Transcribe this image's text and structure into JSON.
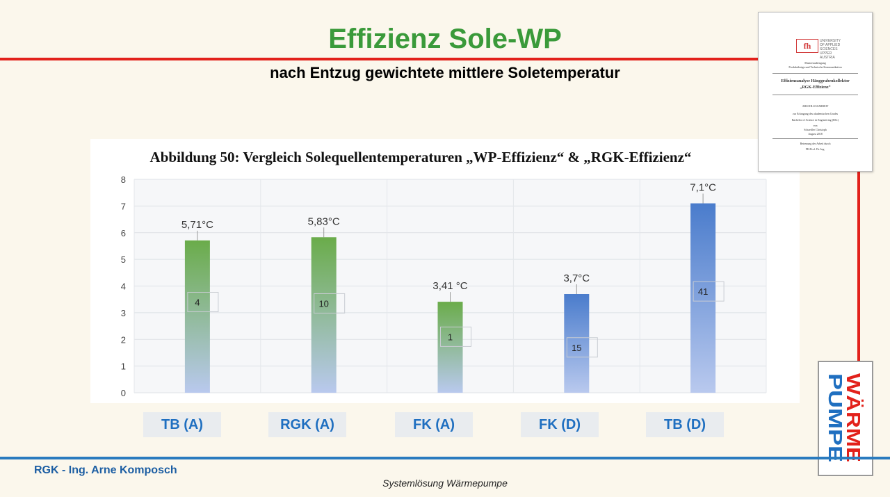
{
  "slide": {
    "title": "Effizienz Sole-WP",
    "subtitle": "nach Entzug gewichtete mittlere Soletemperatur",
    "footer_author": "RGK - Ing. Arne Komposch",
    "footer_center": "Systemlösung Wärmepumpe"
  },
  "logo": {
    "word1": "WÄRME",
    "word2": "PUMPE",
    "word1_color": "#e2211b",
    "word2_color": "#1f6fc0"
  },
  "doc_thumbnail": {
    "logo_mark": "fh",
    "logo_text_1": "UNIVERSITY",
    "logo_text_2": "OF APPLIED SCIENCES",
    "logo_text_3": "UPPER AUSTRIA",
    "line1": "Masterstudiengang",
    "line2": "Produktdesign und Technische Kommunikation",
    "heading1": "Effizienzanalyse Hänggrabenkollektor",
    "heading2": "„RGK-Effizienz“",
    "line3": "ABSCHLUSSARBEIT",
    "line4": "zur Erlangung des akademischen Grades",
    "line5": "Bachelor of Science in Engineering (BSc)",
    "line6": "von",
    "line7": "Schaedler Christoph",
    "line8": "August 2018",
    "line9": "Betreuung der Arbeit durch",
    "line10": "FH-Prof. Dr. Ing."
  },
  "chart_data": {
    "type": "bar",
    "title": "Abbildung 50: Vergleich Solequellentemperaturen „WP-Effizienz“ & „RGK-Effizienz“",
    "categories": [
      "TB (A)",
      "RGK (A)",
      "FK (A)",
      "FK (D)",
      "TB (D)"
    ],
    "values": [
      5.71,
      5.83,
      3.41,
      3.7,
      7.1
    ],
    "value_labels": [
      "5,71°C",
      "5,83°C",
      "3,41 °C",
      "3,7°C",
      "7,1°C"
    ],
    "count_labels": [
      "4",
      "10",
      "1",
      "15",
      "41"
    ],
    "count_positions": [
      3.4,
      3.35,
      2.1,
      1.7,
      3.8
    ],
    "bar_top_colors": [
      "#6aac4a",
      "#6aac4a",
      "#6aac4a",
      "#4a7ccc",
      "#4a7ccc"
    ],
    "bar_bottom_color": "#b9c9ee",
    "y_ticks": [
      "0",
      "1",
      "2",
      "3",
      "4",
      "5",
      "6",
      "7",
      "8"
    ],
    "ylim": [
      0,
      8
    ],
    "grid": true
  }
}
